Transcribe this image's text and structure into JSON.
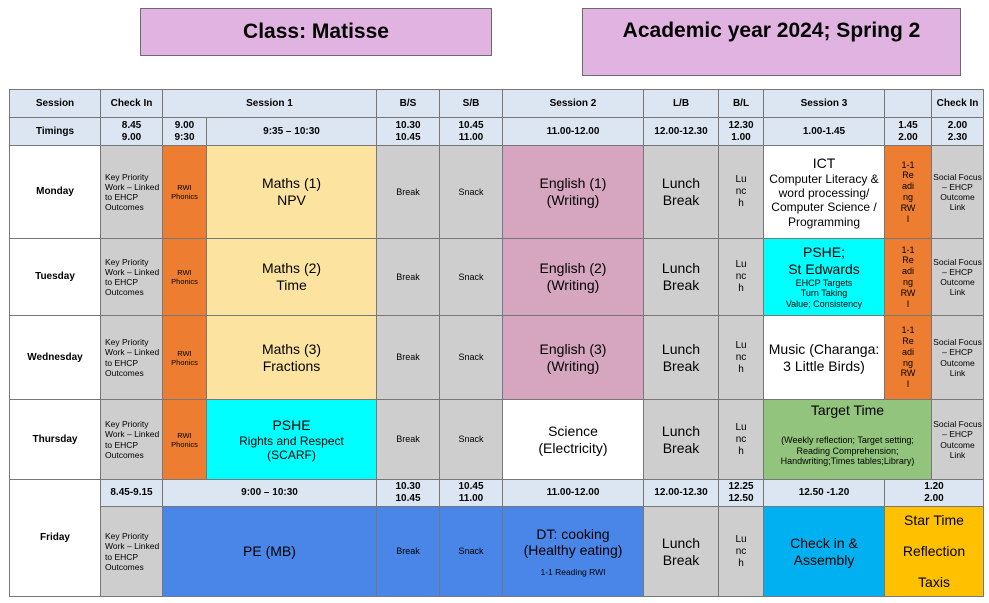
{
  "header": {
    "class_title": "Class: Matisse",
    "year_title": "Academic year 2024; Spring 2"
  },
  "columns": {
    "session": "Session",
    "check_in": "Check In",
    "session1": "Session 1",
    "bs": "B/S",
    "sb": "S/B",
    "session2": "Session 2",
    "lb": "L/B",
    "bl": "B/L",
    "session3": "Session 3",
    "check_in2": "Check In"
  },
  "timings": {
    "label": "Timings",
    "check_in": [
      "8.45",
      "9.00"
    ],
    "rwi": [
      "9.00",
      "9:30"
    ],
    "session1": "9:35 – 10:30",
    "bs": [
      "10.30",
      "10.45"
    ],
    "sb": [
      "10.45",
      "11.00"
    ],
    "session2": "11.00-12.00",
    "lb": "12.00-12.30",
    "bl": [
      "12.30",
      "1.00"
    ],
    "session3": "1.00-1.45",
    "reading": [
      "1.45",
      "2.00"
    ],
    "check_in2": [
      "2.00",
      "2.30"
    ]
  },
  "common": {
    "key_priority": "Key Priority Work – Linked to EHCP Outcomes",
    "rwi": "RWI Phonics",
    "break": "Break",
    "snack": "Snack",
    "lunch_break": "Lunch Break",
    "lunch_vertical": [
      "Lu",
      "nc",
      "h"
    ],
    "reading_rwi": [
      "1-1",
      "Re",
      "adi",
      "ng",
      "RW",
      "I"
    ],
    "social_focus": "Social Focus – EHCP Outcome Link"
  },
  "days": {
    "monday": {
      "name": "Monday",
      "session1": [
        "Maths (1)",
        "NPV"
      ],
      "session2": [
        "English (1)",
        "(Writing)"
      ],
      "session3_title": "ICT",
      "session3_detail": "Computer Literacy & word processing/ Computer Science / Programming"
    },
    "tuesday": {
      "name": "Tuesday",
      "session1": [
        "Maths (2)",
        "Time"
      ],
      "session2": [
        "English (2)",
        "(Writing)"
      ],
      "session3_title": [
        "PSHE;",
        "St Edwards"
      ],
      "session3_detail": [
        "EHCP Targets",
        "Turn Taking",
        "Value; Consistency"
      ]
    },
    "wednesday": {
      "name": "Wednesday",
      "session1": [
        "Maths (3)",
        "Fractions"
      ],
      "session2": [
        "English (3)",
        "(Writing)"
      ],
      "session3": "Music (Charanga: 3 Little Birds)"
    },
    "thursday": {
      "name": "Thursday",
      "session1_title": "PSHE",
      "session1_detail": [
        "Rights and Respect",
        "(SCARF)"
      ],
      "session2": [
        "Science",
        "(Electricity)"
      ],
      "session3_title": "Target Time",
      "session3_detail": "(Weekly reflection; Target setting; Reading Comprehension; Handwriting;Times tables;Library)"
    },
    "friday": {
      "name": "Friday",
      "timings": {
        "check_in": "8.45-9.15",
        "session1": "9:00 – 10:30",
        "bs": [
          "10.30",
          "10.45"
        ],
        "sb": [
          "10.45",
          "11.00"
        ],
        "session2": "11.00-12.00",
        "lb": "12.00-12.30",
        "bl": [
          "12.25",
          "12.50"
        ],
        "session3": "12.50 -1.20",
        "end": [
          "1.20",
          "2.00"
        ]
      },
      "session1": "PE (MB)",
      "session2": [
        "DT: cooking",
        "(Healthy eating)"
      ],
      "session2_note": "1-1 Reading RWI",
      "session3": [
        "Check in &",
        "Assembly"
      ],
      "end": [
        "Star Time",
        "Reflection",
        "Taxis"
      ]
    }
  },
  "colors": {
    "header_box": "#e1b3e1",
    "header_row": "#dce6f2",
    "grey": "#cfcece",
    "orange": "#ed7d31",
    "yellow": "#fce4a0",
    "pink": "#d6a5c0",
    "cyan": "#00ffff",
    "green": "#92c47d",
    "blue": "#4a86e8",
    "sky": "#00b0f0",
    "gold": "#ffc000"
  }
}
